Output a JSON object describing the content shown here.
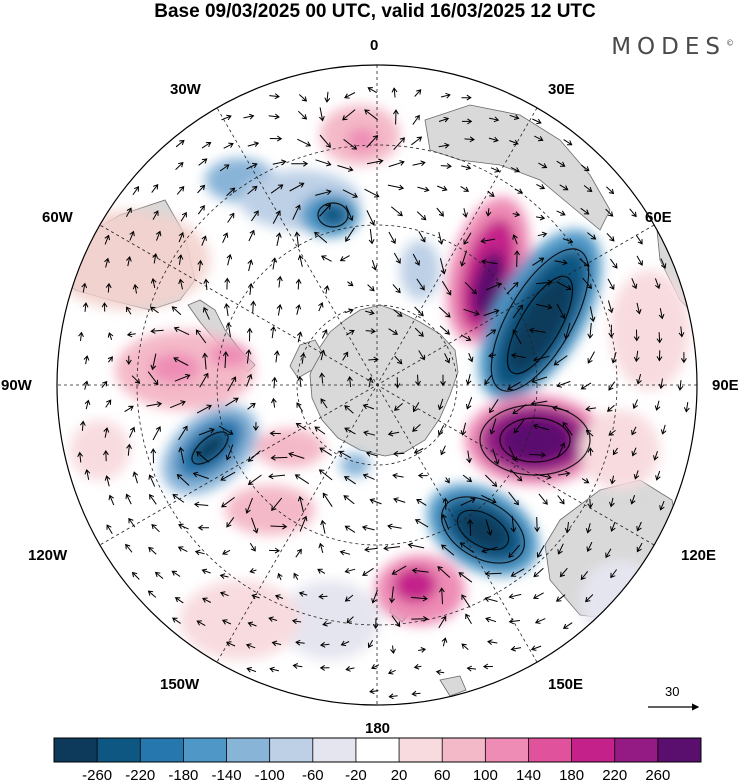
{
  "title": "Base 09/03/2025 00 UTC, valid 16/03/2025 12 UTC",
  "brand": "MODES",
  "brand_mark": "©",
  "longitude_labels": {
    "lon_0": "0",
    "lon_30e": "30E",
    "lon_60e": "60E",
    "lon_90e": "90E",
    "lon_120e": "120E",
    "lon_150e": "150E",
    "lon_180": "180",
    "lon_150w": "150W",
    "lon_120w": "120W",
    "lon_90w": "90W",
    "lon_60w": "60W",
    "lon_30w": "30W"
  },
  "vector_scale": {
    "value": "30"
  },
  "colorbar": {
    "colors": [
      "#0d3a5a",
      "#0f5783",
      "#2577ae",
      "#4f97c6",
      "#88b4d8",
      "#bdd0e6",
      "#e5e5f0",
      "#ffffff",
      "#f8dbdf",
      "#f4b9c8",
      "#ee8cb5",
      "#e0529c",
      "#c4218a",
      "#941a84",
      "#5a0f6e"
    ],
    "tick_labels": [
      "-260",
      "-220",
      "-180",
      "-140",
      "-100",
      "-60",
      "-20",
      "20",
      "60",
      "100",
      "140",
      "180",
      "220",
      "260"
    ]
  },
  "icon_names": [
    "land-outline-icon",
    "wind-vector-icon",
    "scale-arrow-icon"
  ]
}
